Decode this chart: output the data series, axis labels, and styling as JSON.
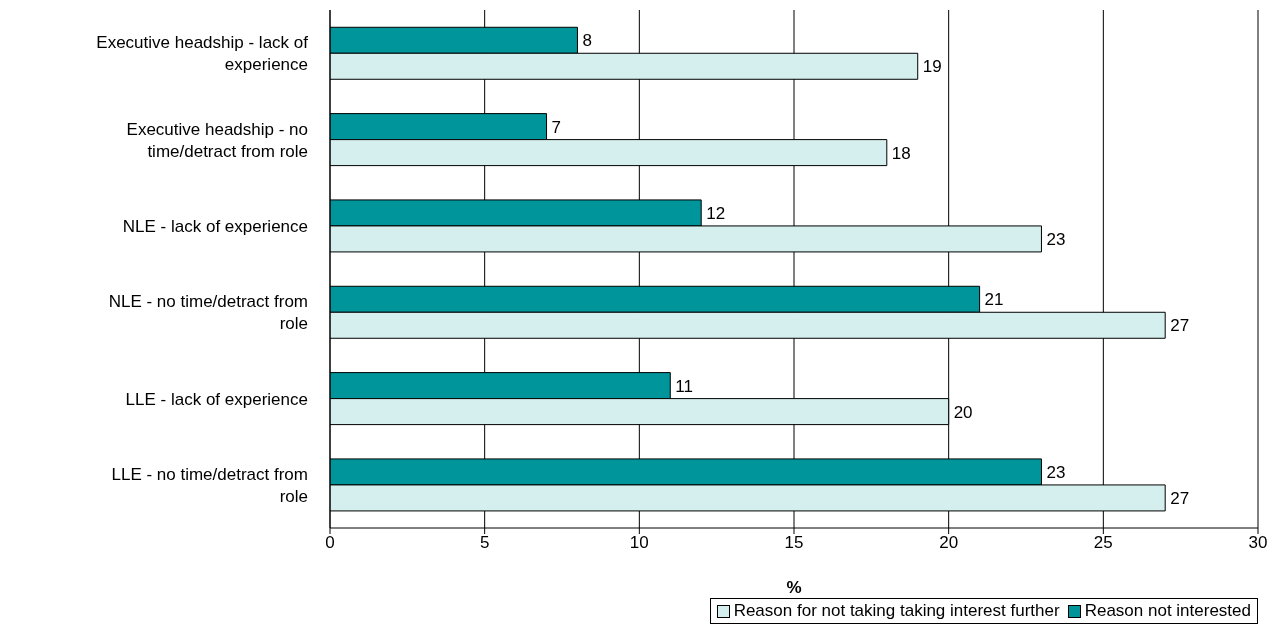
{
  "chart_data": {
    "type": "bar",
    "orientation": "horizontal",
    "xlabel": "%",
    "categories": [
      "Executive headship - lack of experience",
      "Executive headship - no time/detract from role",
      "NLE - lack of experience",
      "NLE - no time/detract from role",
      "LLE - lack of experience",
      "LLE - no time/detract from role"
    ],
    "series": [
      {
        "name": "Reason for not taking taking interest further",
        "color": "#d4efee",
        "values": [
          19,
          18,
          23,
          27,
          20,
          27
        ]
      },
      {
        "name": "Reason not interested",
        "color": "#00959a",
        "values": [
          8,
          7,
          12,
          21,
          11,
          23
        ]
      }
    ],
    "xlim": [
      0,
      30
    ],
    "xticks": [
      0,
      5,
      10,
      15,
      20,
      25,
      30
    ],
    "grid": "x",
    "legend": "bottom",
    "data_labels": true
  }
}
